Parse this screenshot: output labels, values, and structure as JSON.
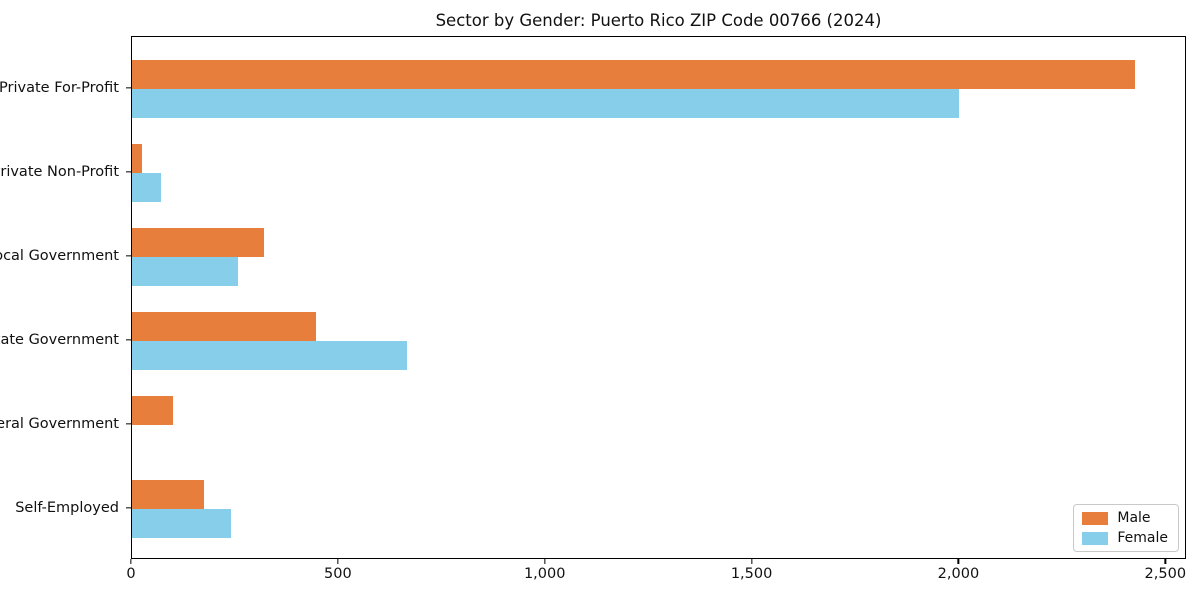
{
  "chart_data": {
    "type": "bar",
    "orientation": "horizontal",
    "title": "Sector by Gender: Puerto Rico ZIP Code 00766 (2024)",
    "categories": [
      "Private For-Profit",
      "Private Non-Profit",
      "Local Government",
      "State Government",
      "Federal Government",
      "Self-Employed"
    ],
    "series": [
      {
        "name": "Male",
        "color": "#e87e3b",
        "values": [
          2425,
          25,
          320,
          445,
          100,
          175
        ]
      },
      {
        "name": "Female",
        "color": "#87ceeb",
        "values": [
          2000,
          70,
          255,
          665,
          0,
          240
        ]
      }
    ],
    "xlabel": "",
    "ylabel": "",
    "xlim": [
      0,
      2550
    ],
    "xticks": [
      0,
      500,
      1000,
      1500,
      2000,
      2500
    ],
    "xtick_labels": [
      "0",
      "500",
      "1,000",
      "1,500",
      "2,000",
      "2,500"
    ],
    "legend_position": "lower right",
    "grid": false,
    "background_color": "#ffffff",
    "spine_color": "#000000"
  }
}
